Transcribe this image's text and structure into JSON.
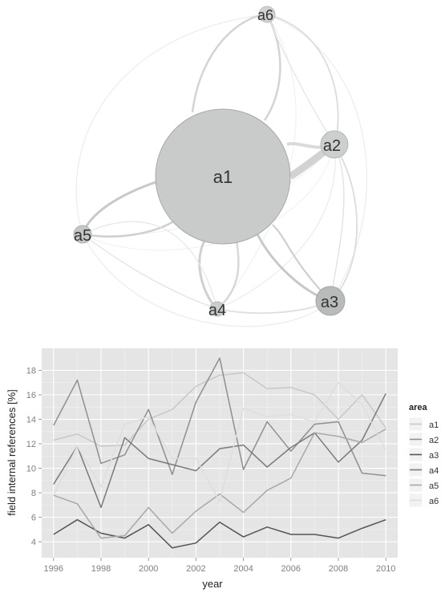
{
  "network": {
    "nodes": [
      {
        "id": "a1",
        "label": "a1"
      },
      {
        "id": "a2",
        "label": "a2"
      },
      {
        "id": "a3",
        "label": "a3"
      },
      {
        "id": "a4",
        "label": "a4"
      },
      {
        "id": "a5",
        "label": "a5"
      },
      {
        "id": "a6",
        "label": "a6"
      }
    ]
  },
  "chart_data": {
    "type": "line",
    "xlabel": "year",
    "ylabel": "field internal references [%]",
    "xlim": [
      1995.5,
      2010.5
    ],
    "ylim": [
      2.7,
      19.8
    ],
    "xticks": [
      1996,
      1998,
      2000,
      2002,
      2004,
      2006,
      2008,
      2010
    ],
    "yticks": [
      4,
      6,
      8,
      10,
      12,
      14,
      16,
      18
    ],
    "grid": true,
    "legend": {
      "title": "area",
      "position": "right"
    },
    "x": [
      1996,
      1997,
      1998,
      1999,
      2000,
      2001,
      2002,
      2003,
      2004,
      2005,
      2006,
      2007,
      2008,
      2009,
      2010
    ],
    "series": [
      {
        "name": "a1",
        "color": "#c8c8c8",
        "values": [
          12.3,
          12.8,
          11.8,
          11.9,
          14.0,
          14.8,
          16.7,
          17.6,
          17.8,
          16.5,
          16.6,
          16.0,
          14.0,
          16.0,
          13.3
        ]
      },
      {
        "name": "a2",
        "color": "#8f8f8f",
        "values": [
          13.5,
          17.2,
          10.4,
          11.1,
          14.8,
          9.5,
          15.4,
          19.0,
          9.9,
          13.8,
          11.4,
          13.6,
          13.8,
          9.6,
          9.4
        ]
      },
      {
        "name": "a3",
        "color": "#555555",
        "values": [
          4.6,
          5.8,
          4.7,
          4.3,
          5.4,
          3.5,
          3.9,
          5.6,
          4.4,
          5.2,
          4.6,
          4.6,
          4.3,
          5.1,
          5.8
        ]
      },
      {
        "name": "a4",
        "color": "#7a7a7a",
        "values": [
          8.7,
          11.8,
          6.8,
          12.5,
          10.8,
          10.3,
          9.8,
          11.6,
          11.9,
          10.1,
          11.7,
          12.9,
          10.5,
          12.3,
          16.1
        ]
      },
      {
        "name": "a5",
        "color": "#a8a8a8",
        "values": [
          7.8,
          7.1,
          4.3,
          4.5,
          6.8,
          4.7,
          6.5,
          7.9,
          6.4,
          8.2,
          9.2,
          12.9,
          12.6,
          12.1,
          13.2
        ]
      },
      {
        "name": "a6",
        "color": "#dedede",
        "values": [
          7.8,
          11.8,
          8.5,
          13.6,
          14.2,
          10.8,
          10.8,
          7.3,
          14.9,
          14.2,
          14.4,
          13.8,
          17.0,
          15.2,
          11.5
        ]
      }
    ]
  }
}
